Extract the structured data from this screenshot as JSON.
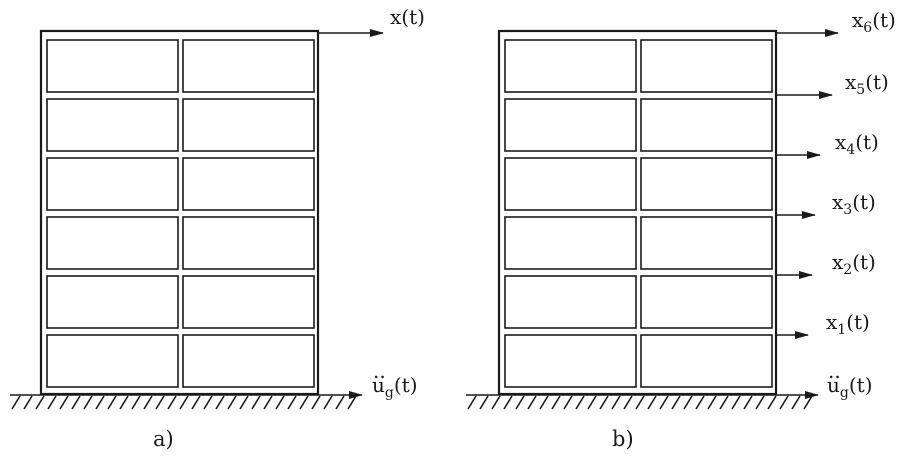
{
  "figure": {
    "a": {
      "caption": "a)",
      "top_label": {
        "base": "x",
        "sub": "",
        "arg": "(t)"
      },
      "ground_label": {
        "base": "u",
        "accent": "..",
        "sub": "g",
        "arg": "(t)"
      }
    },
    "b": {
      "caption": "b)",
      "floor_labels": [
        {
          "base": "x",
          "sub": "6",
          "arg": "(t)"
        },
        {
          "base": "x",
          "sub": "5",
          "arg": "(t)"
        },
        {
          "base": "x",
          "sub": "4",
          "arg": "(t)"
        },
        {
          "base": "x",
          "sub": "3",
          "arg": "(t)"
        },
        {
          "base": "x",
          "sub": "2",
          "arg": "(t)"
        },
        {
          "base": "x",
          "sub": "1",
          "arg": "(t)"
        }
      ],
      "ground_label": {
        "base": "u",
        "accent": "..",
        "sub": "g",
        "arg": "(t)"
      }
    },
    "stories": 6,
    "bays": 2
  }
}
